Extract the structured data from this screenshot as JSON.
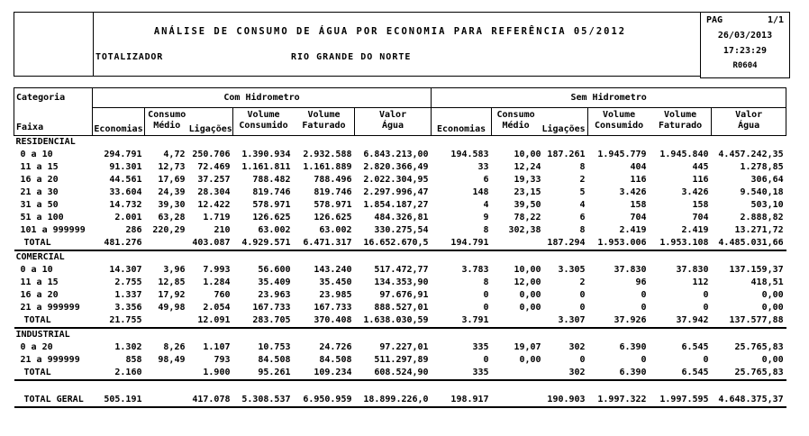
{
  "report": {
    "title": "ANÁLISE DE CONSUMO DE ÁGUA POR ECONOMIA PARA REFERÊNCIA 05/2012",
    "left_label": "TOTALIZADOR",
    "region": "RIO GRANDE DO NORTE",
    "page_box": {
      "pag_label": "PAG",
      "page": "1/1",
      "date": "26/03/2013",
      "time": "17:23:29",
      "code": "R0604"
    }
  },
  "table": {
    "corner": {
      "line1": "Categoria",
      "line2": "Faixa"
    },
    "groups": [
      "Com Hidrometro",
      "Sem Hidrometro"
    ],
    "columns": [
      {
        "lines": [
          "Economias"
        ]
      },
      {
        "lines": [
          "Consumo",
          "Médio"
        ]
      },
      {
        "lines": [
          "Ligações"
        ]
      },
      {
        "lines": [
          "Volume",
          "Consumido"
        ]
      },
      {
        "lines": [
          "Volume",
          "Faturado"
        ]
      },
      {
        "lines": [
          "Valor",
          "Água"
        ]
      }
    ],
    "sections": [
      {
        "name": "RESIDENCIAL",
        "rows": [
          [
            "0 a 10",
            "294.791",
            "4,72",
            "250.706",
            "1.390.934",
            "2.932.588",
            "6.843.213,00",
            "194.583",
            "10,00",
            "187.261",
            "1.945.779",
            "1.945.840",
            "4.457.242,35"
          ],
          [
            "11 a 15",
            "91.301",
            "12,73",
            "72.469",
            "1.161.811",
            "1.161.889",
            "2.820.366,49",
            "33",
            "12,24",
            "8",
            "404",
            "445",
            "1.278,85"
          ],
          [
            "16 a 20",
            "44.561",
            "17,69",
            "37.257",
            "788.482",
            "788.496",
            "2.022.304,95",
            "6",
            "19,33",
            "2",
            "116",
            "116",
            "306,64"
          ],
          [
            "21 a 30",
            "33.604",
            "24,39",
            "28.304",
            "819.746",
            "819.746",
            "2.297.996,47",
            "148",
            "23,15",
            "5",
            "3.426",
            "3.426",
            "9.540,18"
          ],
          [
            "31 a 50",
            "14.732",
            "39,30",
            "12.422",
            "578.971",
            "578.971",
            "1.854.187,27",
            "4",
            "39,50",
            "4",
            "158",
            "158",
            "503,10"
          ],
          [
            "51 a 100",
            "2.001",
            "63,28",
            "1.719",
            "126.625",
            "126.625",
            "484.326,81",
            "9",
            "78,22",
            "6",
            "704",
            "704",
            "2.888,82"
          ],
          [
            "101 a 999999",
            "286",
            "220,29",
            "210",
            "63.002",
            "63.002",
            "330.275,54",
            "8",
            "302,38",
            "8",
            "2.419",
            "2.419",
            "13.271,72"
          ]
        ],
        "total": [
          "TOTAL",
          "481.276",
          "",
          "403.087",
          "4.929.571",
          "6.471.317",
          "16.652.670,5",
          "194.791",
          "",
          "187.294",
          "1.953.006",
          "1.953.108",
          "4.485.031,66"
        ]
      },
      {
        "name": "COMERCIAL",
        "rows": [
          [
            "0 a 10",
            "14.307",
            "3,96",
            "7.993",
            "56.600",
            "143.240",
            "517.472,77",
            "3.783",
            "10,00",
            "3.305",
            "37.830",
            "37.830",
            "137.159,37"
          ],
          [
            "11 a 15",
            "2.755",
            "12,85",
            "1.284",
            "35.409",
            "35.450",
            "134.353,90",
            "8",
            "12,00",
            "2",
            "96",
            "112",
            "418,51"
          ],
          [
            "16 a 20",
            "1.337",
            "17,92",
            "760",
            "23.963",
            "23.985",
            "97.676,91",
            "0",
            "0,00",
            "0",
            "0",
            "0",
            "0,00"
          ],
          [
            "21 a 999999",
            "3.356",
            "49,98",
            "2.054",
            "167.733",
            "167.733",
            "888.527,01",
            "0",
            "0,00",
            "0",
            "0",
            "0",
            "0,00"
          ]
        ],
        "total": [
          "TOTAL",
          "21.755",
          "",
          "12.091",
          "283.705",
          "370.408",
          "1.638.030,59",
          "3.791",
          "",
          "3.307",
          "37.926",
          "37.942",
          "137.577,88"
        ]
      },
      {
        "name": "INDUSTRIAL",
        "rows": [
          [
            "0 a 20",
            "1.302",
            "8,26",
            "1.107",
            "10.753",
            "24.726",
            "97.227,01",
            "335",
            "19,07",
            "302",
            "6.390",
            "6.545",
            "25.765,83"
          ],
          [
            "21 a 999999",
            "858",
            "98,49",
            "793",
            "84.508",
            "84.508",
            "511.297,89",
            "0",
            "0,00",
            "0",
            "0",
            "0",
            "0,00"
          ]
        ],
        "total": [
          "TOTAL",
          "2.160",
          "",
          "1.900",
          "95.261",
          "109.234",
          "608.524,90",
          "335",
          "",
          "302",
          "6.390",
          "6.545",
          "25.765,83"
        ]
      }
    ],
    "grand_total": [
      "TOTAL GERAL",
      "505.191",
      "",
      "417.078",
      "5.308.537",
      "6.950.959",
      "18.899.226,0",
      "198.917",
      "",
      "190.903",
      "1.997.322",
      "1.997.595",
      "4.648.375,37"
    ]
  }
}
